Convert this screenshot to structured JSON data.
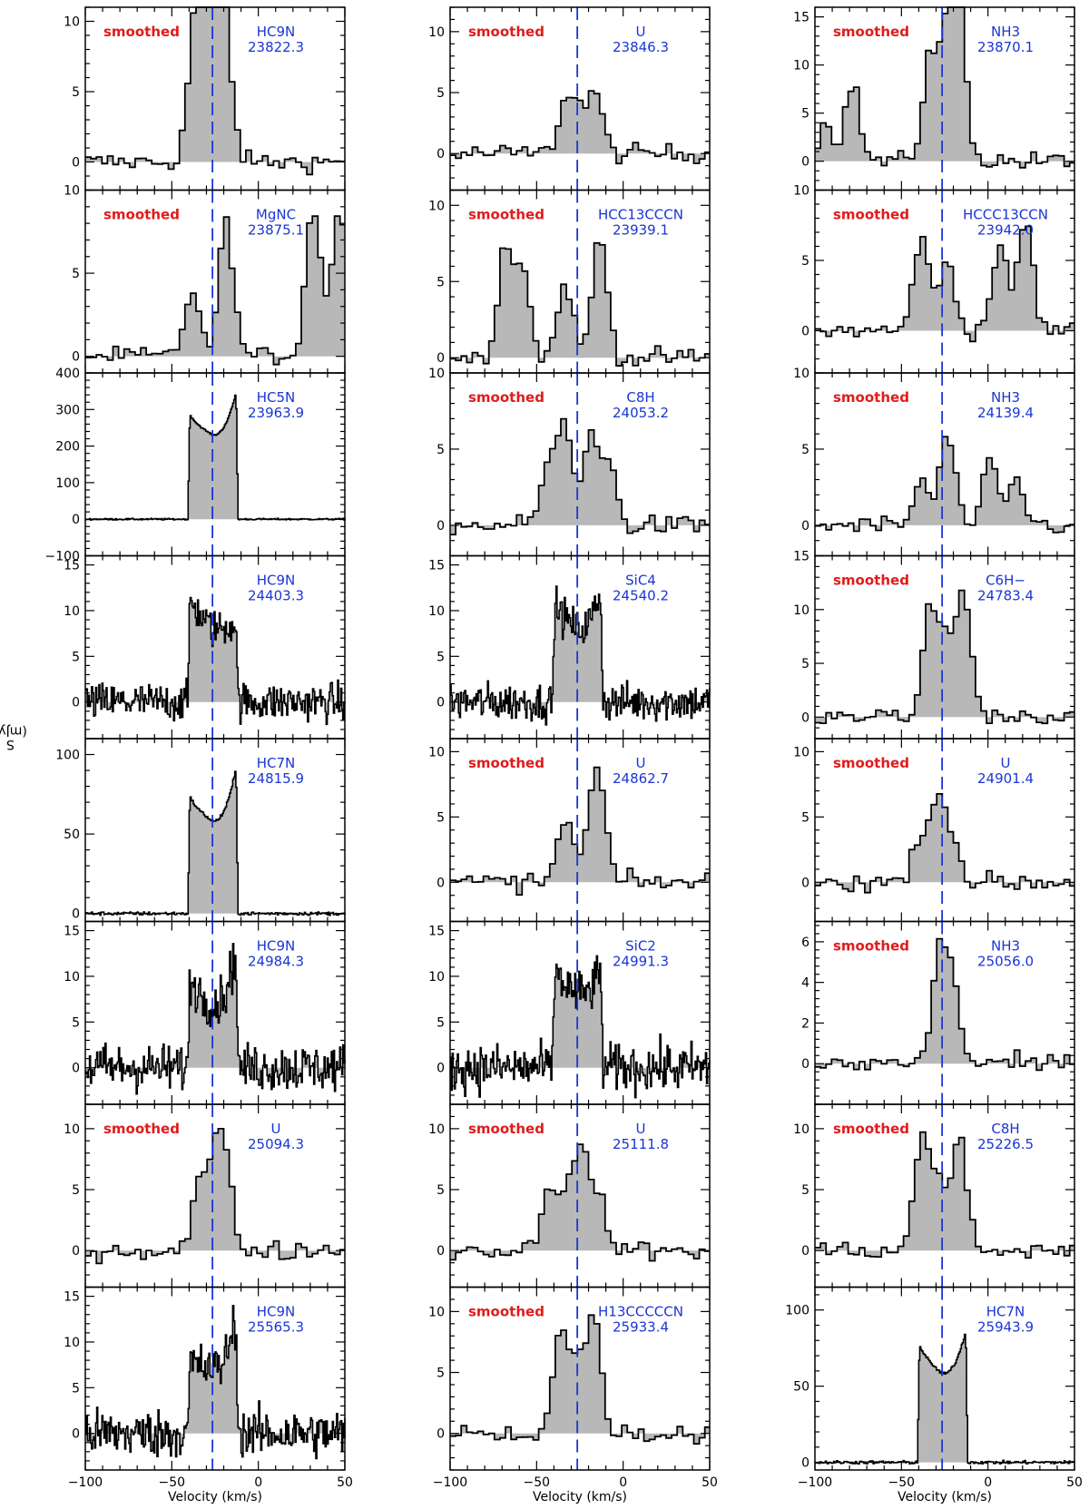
{
  "figure": {
    "ylabel": "S",
    "ylabel_sub": "ν",
    "ylabel_unit": " (mJy)"
  },
  "colors": {
    "fill": "#b8b8b8",
    "line": "#000000",
    "dash": "#1a35d6",
    "smoothed": "#e01b1b",
    "label": "#1a35d6"
  },
  "chart_data": [
    {
      "id": "c0r0",
      "type": "line",
      "smoothed": true,
      "species": "HC9N",
      "freq": "23822.3",
      "ylim": [
        -2,
        11
      ],
      "yticks": [
        0,
        5,
        10
      ],
      "peaks": [
        [
          -38,
          9
        ],
        [
          -32,
          7.5
        ],
        [
          -28,
          6
        ],
        [
          -25,
          8
        ],
        [
          -20,
          6
        ]
      ],
      "x": [
        -100,
        50
      ],
      "xlabel": "Velocity (km/s)",
      "ylabel": "S_ν (mJy)"
    },
    {
      "id": "c1r0",
      "type": "line",
      "smoothed": true,
      "species": "U",
      "freq": "23846.3",
      "ylim": [
        -3,
        12
      ],
      "yticks": [
        0,
        5,
        10
      ],
      "peaks": [
        [
          -35,
          4
        ],
        [
          -28,
          3
        ],
        [
          -18,
          5
        ]
      ]
    },
    {
      "id": "c2r0",
      "type": "line",
      "smoothed": true,
      "species": "NH3",
      "freq": "23870.1",
      "ylim": [
        -3,
        16
      ],
      "yticks": [
        0,
        5,
        10,
        15
      ],
      "peaks": [
        [
          -95,
          4
        ],
        [
          -80,
          8
        ],
        [
          -35,
          11
        ],
        [
          -25,
          12
        ],
        [
          -18,
          14
        ]
      ]
    },
    {
      "id": "c0r1",
      "type": "line",
      "smoothed": true,
      "species": "MgNC",
      "freq": "23875.1",
      "ylim": [
        -1,
        10
      ],
      "yticks": [
        0,
        5,
        10
      ],
      "peaks": [
        [
          -40,
          4
        ],
        [
          -20,
          8
        ],
        [
          30,
          9
        ],
        [
          45,
          9
        ]
      ]
    },
    {
      "id": "c1r1",
      "type": "line",
      "smoothed": true,
      "species": "HCC13CCCN",
      "freq": "23939.1",
      "ylim": [
        -1,
        11
      ],
      "yticks": [
        0,
        5,
        10
      ],
      "peaks": [
        [
          -70,
          7
        ],
        [
          -60,
          6
        ],
        [
          -35,
          5
        ],
        [
          -15,
          8
        ]
      ]
    },
    {
      "id": "c2r1",
      "type": "line",
      "smoothed": true,
      "species": "HCCC13CCN",
      "freq": "23942.0",
      "ylim": [
        -3,
        10
      ],
      "yticks": [
        0,
        5,
        10
      ],
      "peaks": [
        [
          -40,
          7
        ],
        [
          -25,
          5
        ],
        [
          5,
          6
        ],
        [
          20,
          8
        ]
      ]
    },
    {
      "id": "c0r2",
      "type": "line",
      "smoothed": false,
      "species": "HC5N",
      "freq": "23963.9",
      "ylim": [
        -100,
        400
      ],
      "yticks": [
        -100,
        0,
        100,
        200,
        300,
        400
      ],
      "profile": "horn",
      "pk": [
        310,
        230,
        370
      ],
      "noise": 2
    },
    {
      "id": "c1r2",
      "type": "line",
      "smoothed": true,
      "species": "C8H",
      "freq": "24053.2",
      "ylim": [
        -2,
        10
      ],
      "yticks": [
        0,
        5,
        10
      ],
      "peaks": [
        [
          -45,
          4
        ],
        [
          -35,
          6.5
        ],
        [
          -20,
          6
        ],
        [
          -10,
          4
        ]
      ]
    },
    {
      "id": "c2r2",
      "type": "line",
      "smoothed": true,
      "species": "NH3",
      "freq": "24139.4",
      "ylim": [
        -2,
        10
      ],
      "yticks": [
        0,
        5,
        10
      ],
      "peaks": [
        [
          -40,
          3
        ],
        [
          -25,
          6
        ],
        [
          0,
          4
        ],
        [
          15,
          3
        ]
      ]
    },
    {
      "id": "c0r3",
      "type": "line",
      "smoothed": false,
      "species": "HC9N",
      "freq": "24403.3",
      "ylim": [
        -4,
        16
      ],
      "yticks": [
        0,
        5,
        10,
        15
      ],
      "profile": "horn",
      "pk": [
        13,
        8,
        9
      ],
      "noise": 2
    },
    {
      "id": "c1r3",
      "type": "line",
      "smoothed": false,
      "species": "SiC4",
      "freq": "24540.2",
      "ylim": [
        -4,
        16
      ],
      "yticks": [
        0,
        5,
        10,
        15
      ],
      "profile": "horn",
      "pk": [
        12,
        8,
        13
      ],
      "noise": 2
    },
    {
      "id": "c2r3",
      "type": "line",
      "smoothed": true,
      "species": "C6H−",
      "freq": "24783.4",
      "ylim": [
        -2,
        15
      ],
      "yticks": [
        0,
        5,
        10,
        15
      ],
      "peaks": [
        [
          -35,
          10
        ],
        [
          -25,
          7
        ],
        [
          -15,
          11
        ]
      ]
    },
    {
      "id": "c0r4",
      "type": "line",
      "smoothed": false,
      "species": "HC7N",
      "freq": "24815.9",
      "ylim": [
        -5,
        110
      ],
      "yticks": [
        0,
        50,
        100
      ],
      "profile": "horn",
      "pk": [
        80,
        58,
        98
      ],
      "noise": 1
    },
    {
      "id": "c1r4",
      "type": "line",
      "smoothed": true,
      "species": "U",
      "freq": "24862.7",
      "ylim": [
        -3,
        11
      ],
      "yticks": [
        0,
        5,
        10
      ],
      "peaks": [
        [
          -35,
          5
        ],
        [
          -20,
          4
        ],
        [
          -15,
          6
        ]
      ]
    },
    {
      "id": "c2r4",
      "type": "line",
      "smoothed": true,
      "species": "U",
      "freq": "24901.4",
      "ylim": [
        -3,
        11
      ],
      "yticks": [
        0,
        5,
        10
      ],
      "peaks": [
        [
          -40,
          4
        ],
        [
          -30,
          6
        ],
        [
          -22,
          3
        ]
      ]
    },
    {
      "id": "c0r5",
      "type": "line",
      "smoothed": false,
      "species": "HC9N",
      "freq": "24984.3",
      "ylim": [
        -4,
        16
      ],
      "yticks": [
        0,
        5,
        10,
        15
      ],
      "profile": "horn",
      "pk": [
        11,
        7,
        14
      ],
      "noise": 2.5
    },
    {
      "id": "c1r5",
      "type": "line",
      "smoothed": false,
      "species": "SiC2",
      "freq": "24991.3",
      "ylim": [
        -4,
        16
      ],
      "yticks": [
        0,
        5,
        10,
        15
      ],
      "profile": "horn",
      "pk": [
        12,
        8,
        11
      ],
      "noise": 2.5
    },
    {
      "id": "c2r5",
      "type": "line",
      "smoothed": true,
      "species": "NH3",
      "freq": "25056.0",
      "ylim": [
        -2,
        7
      ],
      "yticks": [
        0,
        2,
        4,
        6
      ],
      "peaks": [
        [
          -30,
          5
        ],
        [
          -22,
          4
        ]
      ]
    },
    {
      "id": "c0r6",
      "type": "line",
      "smoothed": true,
      "species": "U",
      "freq": "25094.3",
      "ylim": [
        -3,
        12
      ],
      "yticks": [
        0,
        5,
        10
      ],
      "peaks": [
        [
          -35,
          6
        ],
        [
          -25,
          7
        ],
        [
          -20,
          5
        ]
      ]
    },
    {
      "id": "c1r6",
      "type": "line",
      "smoothed": true,
      "species": "U",
      "freq": "25111.8",
      "ylim": [
        -3,
        12
      ],
      "yticks": [
        0,
        5,
        10
      ],
      "peaks": [
        [
          -45,
          5
        ],
        [
          -35,
          5
        ],
        [
          -25,
          8
        ],
        [
          -15,
          4
        ]
      ]
    },
    {
      "id": "c2r6",
      "type": "line",
      "smoothed": true,
      "species": "C8H",
      "freq": "25226.5",
      "ylim": [
        -3,
        12
      ],
      "yticks": [
        0,
        5,
        10
      ],
      "peaks": [
        [
          -40,
          9
        ],
        [
          -30,
          6
        ],
        [
          -18,
          9
        ]
      ]
    },
    {
      "id": "c0r7",
      "type": "line",
      "smoothed": false,
      "species": "HC9N",
      "freq": "25565.3",
      "ylim": [
        -4,
        16
      ],
      "yticks": [
        0,
        5,
        10,
        15
      ],
      "profile": "horn",
      "pk": [
        8,
        7,
        14
      ],
      "noise": 2.5
    },
    {
      "id": "c1r7",
      "type": "line",
      "smoothed": true,
      "species": "H13CCCCCN",
      "freq": "25933.4",
      "ylim": [
        -3,
        12
      ],
      "yticks": [
        0,
        5,
        10
      ],
      "peaks": [
        [
          -38,
          8
        ],
        [
          -28,
          6
        ],
        [
          -18,
          9
        ]
      ]
    },
    {
      "id": "c2r7",
      "type": "line",
      "smoothed": false,
      "species": "HC7N",
      "freq": "25943.9",
      "ylim": [
        -5,
        115
      ],
      "yticks": [
        0,
        50,
        100
      ],
      "profile": "horn",
      "pk": [
        85,
        58,
        92
      ],
      "noise": 1
    }
  ],
  "xaxis": {
    "min": -100,
    "max": 50,
    "ticks": [
      -100,
      -50,
      0,
      50
    ],
    "label": "Velocity (km/s)"
  },
  "smoothed_label": "smoothed",
  "vlsr": -26.5,
  "line_window": [
    -41,
    -12
  ]
}
